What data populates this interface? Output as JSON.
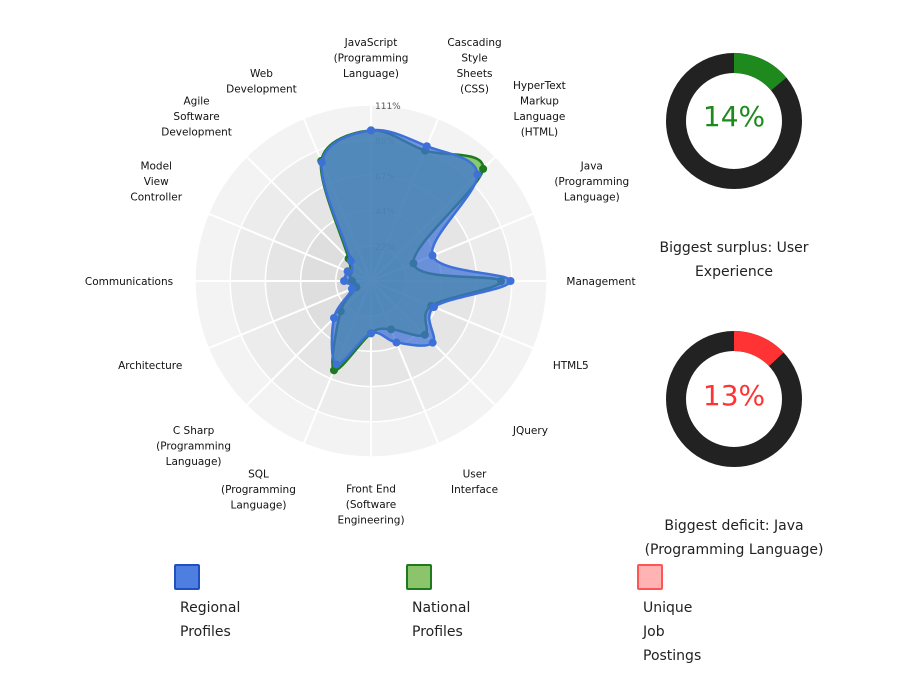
{
  "chart_data": [
    {
      "type": "radar",
      "axes": [
        "JavaScript (Programming Language)",
        "Cascading Style Sheets (CSS)",
        "HyperText Markup Language (HTML)",
        "Java (Programming Language)",
        "Management",
        "HTML5",
        "JQuery",
        "User Interface",
        "Front End (Software Engineering)",
        "SQL (Programming Language)",
        "C Sharp (Programming Language)",
        "Architecture",
        "Communications",
        "Model View Controller",
        "Agile Software Development",
        "Web Development"
      ],
      "axis_label_lines": [
        [
          "JavaScript",
          "(Programming",
          "Language)"
        ],
        [
          "Cascading",
          "Style",
          "Sheets",
          "(CSS)"
        ],
        [
          "HyperText",
          "Markup",
          "Language",
          "(HTML)"
        ],
        [
          "Java",
          "(Programming",
          "Language)"
        ],
        [
          "Management"
        ],
        [
          "HTML5"
        ],
        [
          "JQuery"
        ],
        [
          "User",
          "Interface"
        ],
        [
          "Front End",
          "(Software",
          "Engineering)"
        ],
        [
          "SQL",
          "(Programming",
          "Language)"
        ],
        [
          "C Sharp",
          "(Programming",
          "Language)"
        ],
        [
          "Architecture"
        ],
        [
          "Communications"
        ],
        [
          "Model",
          "View",
          "Controller"
        ],
        [
          "Agile",
          "Software",
          "Development"
        ],
        [
          "Web",
          "Development"
        ]
      ],
      "ticks": [
        "22%",
        "44%",
        "67%",
        "89%",
        "111%"
      ],
      "range": [
        0,
        111
      ],
      "series": [
        {
          "name": "Regional Profiles",
          "color": "#3e71d8",
          "values": [
            95,
            92,
            95,
            42,
            88,
            43,
            55,
            42,
            33,
            57,
            33,
            13,
            17,
            16,
            18,
            81
          ]
        },
        {
          "name": "National Profiles",
          "color": "#1e7a1e",
          "values": [
            95,
            89,
            100,
            29,
            82,
            41,
            48,
            33,
            33,
            61,
            27,
            10,
            12,
            15,
            20,
            82
          ]
        }
      ]
    },
    {
      "type": "donut",
      "value_pct": 14,
      "label": "14%",
      "color": "#1e8a1e",
      "caption_lines": [
        "Biggest surplus: User",
        "Experience"
      ]
    },
    {
      "type": "donut",
      "value_pct": 13,
      "label": "13%",
      "color": "#ff3333",
      "caption_lines": [
        "Biggest deficit: Java",
        "(Programming Language)"
      ]
    }
  ],
  "legend": [
    {
      "lines": [
        "Regional",
        "Profiles"
      ],
      "fill": "#4d7ee0",
      "border": "#1f4fc0"
    },
    {
      "lines": [
        "National",
        "Profiles"
      ],
      "fill": "#8cc46c",
      "border": "#1e7a1e"
    },
    {
      "lines": [
        "Unique",
        "Job",
        "Postings"
      ],
      "fill": "#ffb3b3",
      "border": "#ff5555"
    }
  ]
}
